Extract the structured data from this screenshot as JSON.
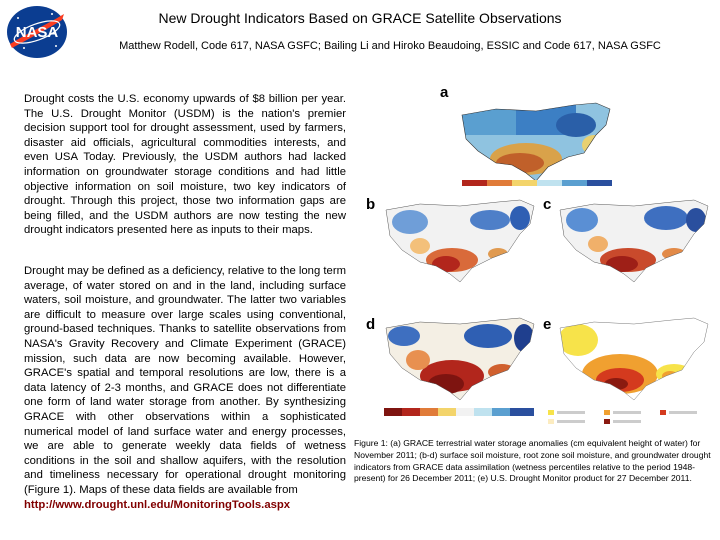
{
  "header": {
    "logo_text": "NASA",
    "title": "New Drought Indicators Based on GRACE Satellite Observations",
    "authors": "Matthew Rodell, Code 617, NASA GSFC; Bailing Li and Hiroko Beaudoing, ESSIC and Code 617, NASA GSFC"
  },
  "body": {
    "paragraph1": "Drought costs the U.S. economy upwards of $8 billion per year. The U.S. Drought Monitor (USDM) is the nation's premier decision support tool for drought assessment, used by farmers, disaster aid officials, agricultural commodities interests, and even USA Today. Previously, the USDM authors had lacked information on groundwater storage conditions and had little objective information on soil moisture, two key indicators of drought. Through this project, those two information gaps are being filled, and the USDM authors are now testing the new drought indicators presented here as inputs to their maps.",
    "paragraph2": "Drought may be defined as a deficiency, relative to the long term average, of water stored on and in the land, including surface waters, soil moisture, and groundwater. The latter two variables are difficult to measure over large scales using conventional, ground-based techniques. Thanks to satellite observations from NASA's Gravity Recovery and Climate Experiment (GRACE) mission, such data are now becoming available. However, GRACE's spatial and temporal resolutions are low, there is a data latency of 2-3 months, and GRACE does not differentiate one form of land water storage from another. By synthesizing GRACE with other observations within a sophisticated numerical model of land surface water and energy processes, we are able to generate weekly data fields of wetness conditions in the soil and shallow aquifers, with the resolution and timeliness necessary for operational drought monitoring (Figure 1). Maps of these data fields are available from",
    "link": "http://www.drought.unl.edu/MonitoringTools.aspx"
  },
  "figure": {
    "labels": {
      "a": "a",
      "b": "b",
      "c": "c",
      "d": "d",
      "e": "e"
    },
    "caption": "Figure 1: (a) GRACE terrestrial water storage anomalies (cm equivalent height of water) for November 2011; (b-d) surface soil moisture, root zone soil moisture, and groundwater drought indicators from GRACE data assimilation (wetness percentiles relative to the period 1948-present) for 26 December 2011; (e) U.S. Drought Monitor product for 27 December 2011."
  },
  "colors": {
    "logo_blue": "#0b3d91",
    "logo_red": "#fc3d21",
    "link": "#800000",
    "wet_blue": "#2f5fb3",
    "dry_red": "#b2261c",
    "neutral": "#f4f4f4",
    "usdm_yellow": "#f7e34a",
    "usdm_orange": "#f0a030",
    "usdm_red": "#d43a1e"
  }
}
